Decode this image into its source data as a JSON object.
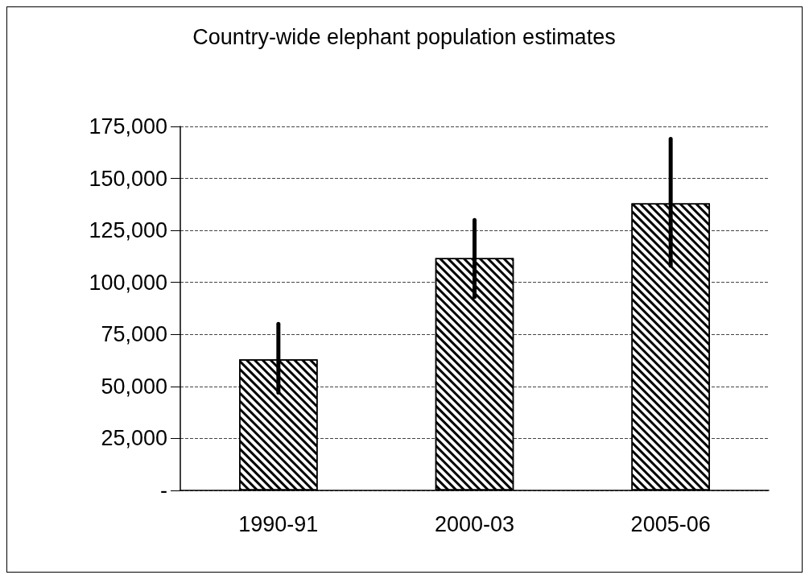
{
  "chart_data": {
    "type": "bar",
    "title": "Country-wide elephant population estimates",
    "categories": [
      "1990-91",
      "2000-03",
      "2005-06"
    ],
    "values": [
      63000,
      111700,
      138000
    ],
    "errors": [
      [
        47000,
        80000
      ],
      [
        93000,
        130000
      ],
      [
        108000,
        169000
      ]
    ],
    "color": "#000000",
    "ylim": [
      0,
      175000
    ],
    "yticks": [
      {
        "value": 0,
        "label": "-"
      },
      {
        "value": 25000,
        "label": "25,000"
      },
      {
        "value": 50000,
        "label": "50,000"
      },
      {
        "value": 75000,
        "label": "75,000"
      },
      {
        "value": 100000,
        "label": "100,000"
      },
      {
        "value": 125000,
        "label": "125,000"
      },
      {
        "value": 150000,
        "label": "150,000"
      },
      {
        "value": 175000,
        "label": "175,000"
      }
    ],
    "grid": "y",
    "line_style": "dashed"
  }
}
